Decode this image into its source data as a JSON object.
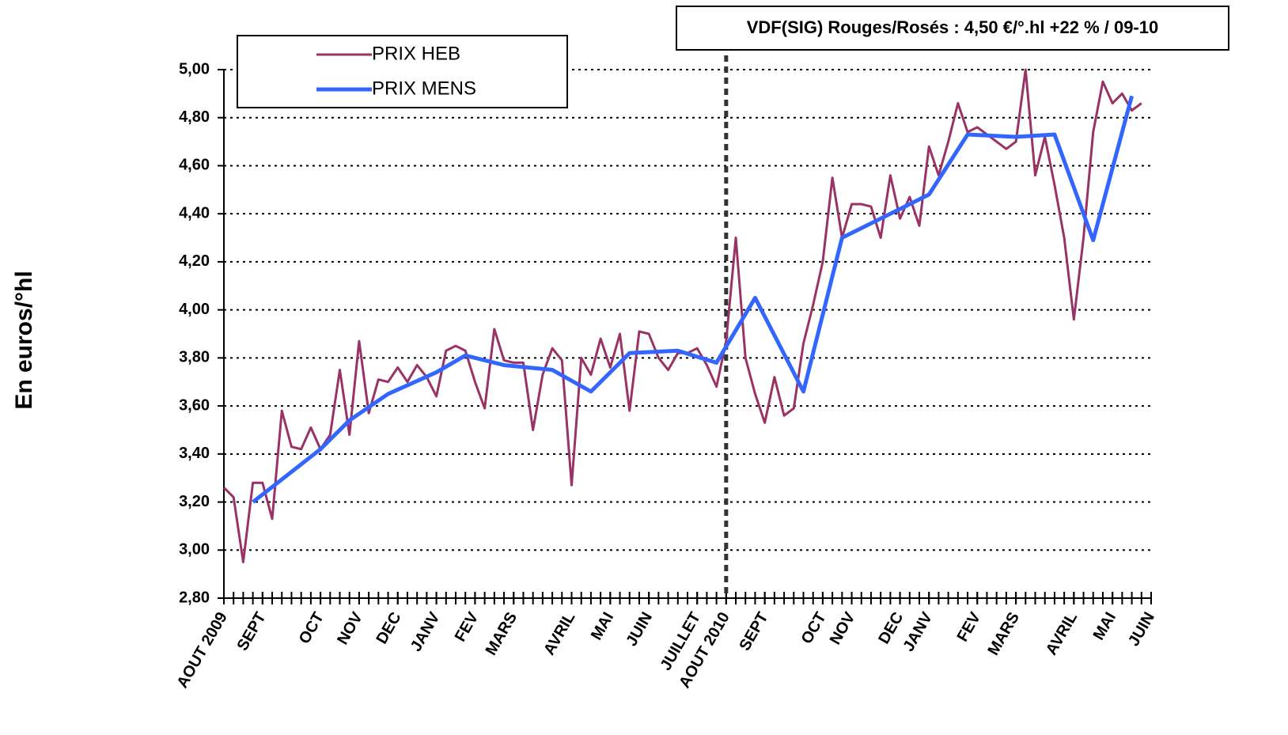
{
  "chart_data": {
    "type": "line",
    "annotation": "VDF(SIG) Rouges/Rosés : 4,50 €/°.hl +22 % / 09-10",
    "ylabel": "En euros/°hl",
    "xlim": [
      0,
      96
    ],
    "xticks": [
      {
        "value": 0,
        "label": "AOUT 2009"
      },
      {
        "value": 4,
        "label": "SEPT"
      },
      {
        "value": 10,
        "label": "OCT"
      },
      {
        "value": 14,
        "label": "NOV"
      },
      {
        "value": 18,
        "label": "DEC"
      },
      {
        "value": 22,
        "label": "JANV"
      },
      {
        "value": 26,
        "label": "FEV"
      },
      {
        "value": 30,
        "label": "MARS"
      },
      {
        "value": 36,
        "label": "AVRIL"
      },
      {
        "value": 40,
        "label": "MAI"
      },
      {
        "value": 44,
        "label": "JUIN"
      },
      {
        "value": 49,
        "label": "JUILLET"
      },
      {
        "value": 52,
        "label": "AOUT 2010"
      },
      {
        "value": 56,
        "label": "SEPT"
      },
      {
        "value": 62,
        "label": "OCT"
      },
      {
        "value": 65,
        "label": "NOV"
      },
      {
        "value": 70,
        "label": "DEC"
      },
      {
        "value": 73,
        "label": "JANV"
      },
      {
        "value": 78,
        "label": "FEV"
      },
      {
        "value": 82,
        "label": "MARS"
      },
      {
        "value": 88,
        "label": "AVRIL"
      },
      {
        "value": 92,
        "label": "MAI"
      },
      {
        "value": 96,
        "label": "JUIN"
      }
    ],
    "ylim": [
      2.8,
      5.0
    ],
    "yticks": [
      {
        "value": 2.8,
        "label": "2,80"
      },
      {
        "value": 3.0,
        "label": "3,00"
      },
      {
        "value": 3.2,
        "label": "3,20"
      },
      {
        "value": 3.4,
        "label": "3,40"
      },
      {
        "value": 3.6,
        "label": "3,60"
      },
      {
        "value": 3.8,
        "label": "3,80"
      },
      {
        "value": 4.0,
        "label": "4,00"
      },
      {
        "value": 4.2,
        "label": "4,20"
      },
      {
        "value": 4.4,
        "label": "4,40"
      },
      {
        "value": 4.6,
        "label": "4,60"
      },
      {
        "value": 4.8,
        "label": "4,80"
      },
      {
        "value": 5.0,
        "label": "5,00"
      }
    ],
    "grid": true,
    "vline_x": 52,
    "legend": "upper left",
    "series": [
      {
        "name": "PRIX HEB",
        "color": "#993366",
        "x": [
          0,
          1,
          2,
          3,
          4,
          5,
          6,
          7,
          8,
          9,
          10,
          11,
          12,
          13,
          14,
          15,
          16,
          17,
          18,
          19,
          20,
          21,
          22,
          23,
          24,
          25,
          26,
          27,
          28,
          29,
          30,
          31,
          32,
          33,
          34,
          35,
          36,
          37,
          38,
          39,
          40,
          41,
          42,
          43,
          44,
          45,
          46,
          47,
          48,
          49,
          50,
          51,
          52,
          53,
          54,
          55,
          56,
          57,
          58,
          59,
          60,
          61,
          62,
          63,
          64,
          65,
          66,
          67,
          68,
          69,
          70,
          71,
          72,
          73,
          74,
          75,
          76,
          77,
          78,
          79,
          80,
          81,
          82,
          83,
          84,
          85,
          86,
          87,
          88,
          89,
          90,
          91,
          92,
          93,
          94,
          95
        ],
        "values": [
          3.26,
          3.22,
          2.95,
          3.28,
          3.28,
          3.13,
          3.58,
          3.43,
          3.42,
          3.51,
          3.42,
          3.48,
          3.75,
          3.48,
          3.87,
          3.57,
          3.71,
          3.7,
          3.76,
          3.7,
          3.77,
          3.72,
          3.64,
          3.83,
          3.85,
          3.83,
          3.7,
          3.59,
          3.92,
          3.79,
          3.78,
          3.78,
          3.5,
          3.73,
          3.84,
          3.79,
          3.27,
          3.8,
          3.73,
          3.88,
          3.76,
          3.9,
          3.58,
          3.91,
          3.9,
          3.8,
          3.75,
          3.82,
          3.82,
          3.84,
          3.77,
          3.68,
          3.87,
          4.3,
          3.8,
          3.65,
          3.53,
          3.72,
          3.56,
          3.59,
          3.86,
          4.02,
          4.2,
          4.55,
          4.3,
          4.44,
          4.44,
          4.43,
          4.3,
          4.56,
          4.38,
          4.47,
          4.35,
          4.68,
          4.56,
          4.7,
          4.86,
          4.74,
          4.76,
          4.73,
          4.7,
          4.67,
          4.7,
          5.0,
          4.56,
          4.72,
          4.52,
          4.3,
          3.96,
          4.3,
          4.74,
          4.95,
          4.86,
          4.9,
          4.83,
          4.86
        ]
      },
      {
        "name": "PRIX MENS",
        "color": "#3366ff",
        "x": [
          3,
          10,
          13,
          17,
          22,
          25,
          29,
          34,
          38,
          42,
          47,
          51,
          55,
          60,
          64,
          69,
          73,
          77,
          82,
          86,
          90,
          94
        ],
        "values": [
          3.2,
          3.42,
          3.54,
          3.65,
          3.74,
          3.81,
          3.77,
          3.75,
          3.66,
          3.82,
          3.83,
          3.78,
          4.05,
          3.66,
          4.3,
          4.4,
          4.48,
          4.73,
          4.72,
          4.73,
          4.29,
          4.89
        ]
      }
    ]
  }
}
